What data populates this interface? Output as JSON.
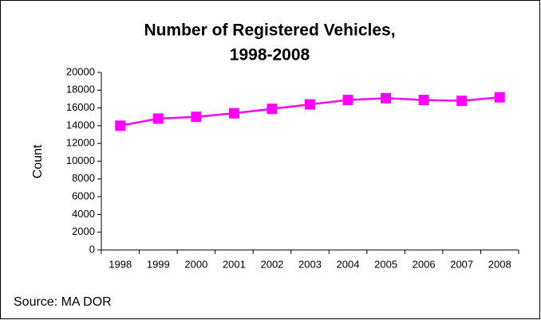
{
  "chart_data": {
    "type": "line",
    "title": [
      "Number of Registered Vehicles,",
      "1998-2008"
    ],
    "ylabel": "Count",
    "annotation": "Source: MA DOR",
    "categories": [
      "1998",
      "1999",
      "2000",
      "2001",
      "2002",
      "2003",
      "2004",
      "2005",
      "2006",
      "2007",
      "2008"
    ],
    "series": [
      {
        "name": "Registered Vehicles",
        "color": "#ff00ff",
        "values": [
          14000,
          14800,
          15000,
          15400,
          15900,
          16400,
          16900,
          17100,
          16900,
          16800,
          17200
        ]
      }
    ],
    "ylim": [
      0,
      20000
    ],
    "yticks": [
      0,
      2000,
      4000,
      6000,
      8000,
      10000,
      12000,
      14000,
      16000,
      18000,
      20000
    ],
    "grid": false
  }
}
